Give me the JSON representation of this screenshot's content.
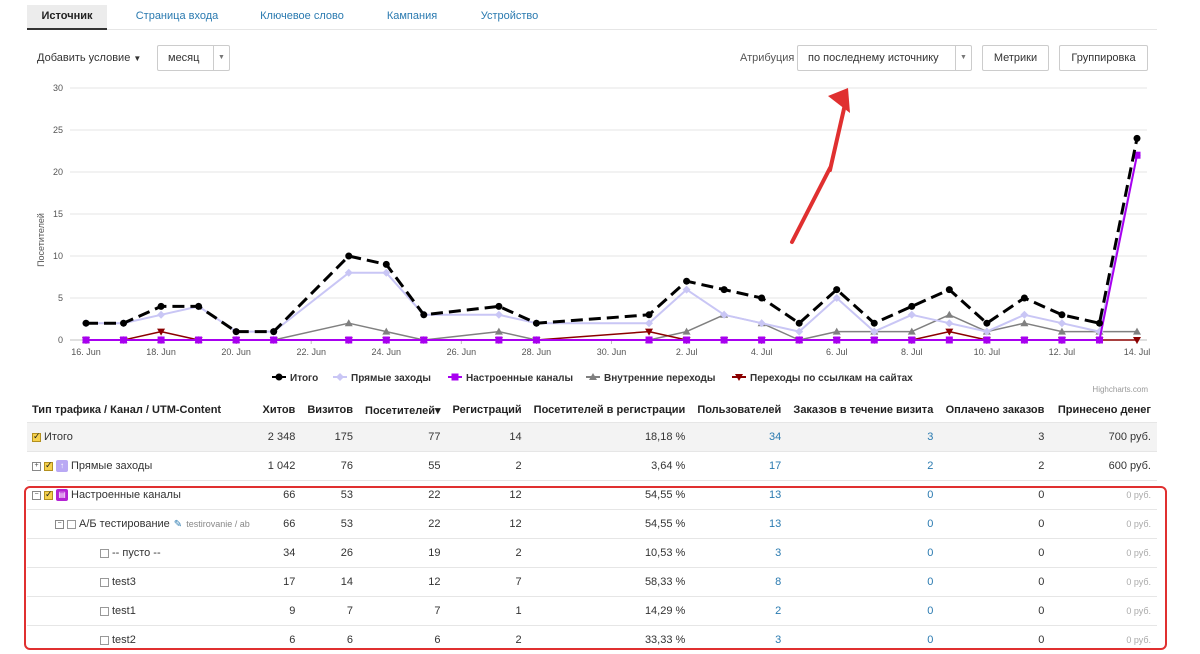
{
  "tabs": [
    "Источник",
    "Страница входа",
    "Ключевое слово",
    "Кампания",
    "Устройство"
  ],
  "toolbar": {
    "add_condition": "Добавить условие",
    "period": "месяц",
    "attribution_label": "Атрибуция",
    "attribution_value": "по последнему источнику",
    "metrics": "Метрики",
    "grouping": "Группировка"
  },
  "colors": {
    "total": "#000000",
    "direct": "#c9c6f5",
    "custom": "#a800f0",
    "internal": "#808080",
    "referral": "#8b0000",
    "annotation_arrow": "#e03030",
    "highlight_box": "#e03030"
  },
  "chart_data": {
    "type": "line",
    "ylabel": "Посетителей",
    "ylim": [
      0,
      30
    ],
    "yticks": [
      0,
      5,
      10,
      15,
      20,
      25,
      30
    ],
    "x": [
      "16. Jun",
      "17. Jun",
      "18. Jun",
      "19. Jun",
      "20. Jun",
      "21. Jun",
      "23. Jun",
      "24. Jun",
      "25. Jun",
      "27. Jun",
      "28. Jun",
      "1. Jul",
      "2. Jul",
      "3. Jul",
      "4. Jul",
      "5. Jul",
      "6. Jul",
      "7. Jul",
      "8. Jul",
      "9. Jul",
      "10. Jul",
      "11. Jul",
      "12. Jul",
      "13. Jul",
      "14. Jul"
    ],
    "xtick_labels": [
      "16. Jun",
      "18. Jun",
      "20. Jun",
      "22. Jun",
      "24. Jun",
      "26. Jun",
      "28. Jun",
      "30. Jun",
      "2. Jul",
      "4. Jul",
      "6. Jul",
      "8. Jul",
      "10. Jul",
      "12. Jul",
      "14. Jul"
    ],
    "legend_position": "bottom",
    "series": [
      {
        "name": "Итого",
        "values": [
          2,
          2,
          4,
          4,
          1,
          1,
          10,
          9,
          3,
          4,
          2,
          3,
          7,
          6,
          5,
          2,
          6,
          2,
          4,
          6,
          2,
          5,
          3,
          2,
          24
        ]
      },
      {
        "name": "Прямые заходы",
        "values": [
          2,
          2,
          3,
          4,
          1,
          1,
          8,
          8,
          3,
          3,
          2,
          2,
          6,
          3,
          2,
          1,
          5,
          1,
          3,
          2,
          1,
          3,
          2,
          1,
          22
        ]
      },
      {
        "name": "Настроенные каналы",
        "values": [
          0,
          0,
          0,
          0,
          0,
          0,
          0,
          0,
          0,
          0,
          0,
          0,
          0,
          0,
          0,
          0,
          0,
          0,
          0,
          0,
          0,
          0,
          0,
          0,
          22
        ]
      },
      {
        "name": "Внутренние переходы",
        "values": [
          0,
          0,
          0,
          0,
          0,
          0,
          2,
          1,
          0,
          1,
          0,
          0,
          1,
          3,
          2,
          0,
          1,
          1,
          1,
          3,
          1,
          2,
          1,
          1,
          1
        ]
      },
      {
        "name": "Переходы по ссылкам на сайтах",
        "values": [
          0,
          0,
          1,
          0,
          0,
          0,
          0,
          0,
          0,
          0,
          0,
          1,
          0,
          0,
          0,
          0,
          0,
          0,
          0,
          1,
          0,
          0,
          0,
          0,
          0
        ]
      }
    ]
  },
  "credits": "Highcharts.com",
  "table": {
    "headers": [
      "Тип трафика / Канал / UTM-Content",
      "Хитов",
      "Визитов",
      "Посетителей",
      "Регистраций",
      "Посетителей в регистрации",
      "Пользователей",
      "Заказов в течение визита",
      "Оплачено заказов",
      "Принесено денег"
    ],
    "sort_indicator": "▾",
    "rows": [
      {
        "label": "Итого",
        "cells": [
          "2 348",
          "175",
          "77",
          "14",
          "18,18 %",
          "34",
          "3",
          "3",
          "700 руб."
        ]
      },
      {
        "label": "Прямые заходы",
        "cells": [
          "1 042",
          "76",
          "55",
          "2",
          "3,64 %",
          "17",
          "2",
          "2",
          "600 руб."
        ]
      },
      {
        "label": "Настроенные каналы",
        "cells": [
          "66",
          "53",
          "22",
          "12",
          "54,55 %",
          "13",
          "0",
          "0",
          "0 руб."
        ]
      },
      {
        "label": "А/Б тестирование",
        "utm": "testirovanie / ab",
        "cells": [
          "66",
          "53",
          "22",
          "12",
          "54,55 %",
          "13",
          "0",
          "0",
          "0 руб."
        ]
      },
      {
        "label": "-- пусто --",
        "cells": [
          "34",
          "26",
          "19",
          "2",
          "10,53 %",
          "3",
          "0",
          "0",
          "0 руб."
        ]
      },
      {
        "label": "test3",
        "cells": [
          "17",
          "14",
          "12",
          "7",
          "58,33 %",
          "8",
          "0",
          "0",
          "0 руб."
        ]
      },
      {
        "label": "test1",
        "cells": [
          "9",
          "7",
          "7",
          "1",
          "14,29 %",
          "2",
          "0",
          "0",
          "0 руб."
        ]
      },
      {
        "label": "test2",
        "cells": [
          "6",
          "6",
          "6",
          "2",
          "33,33 %",
          "3",
          "0",
          "0",
          "0 руб."
        ]
      }
    ]
  }
}
